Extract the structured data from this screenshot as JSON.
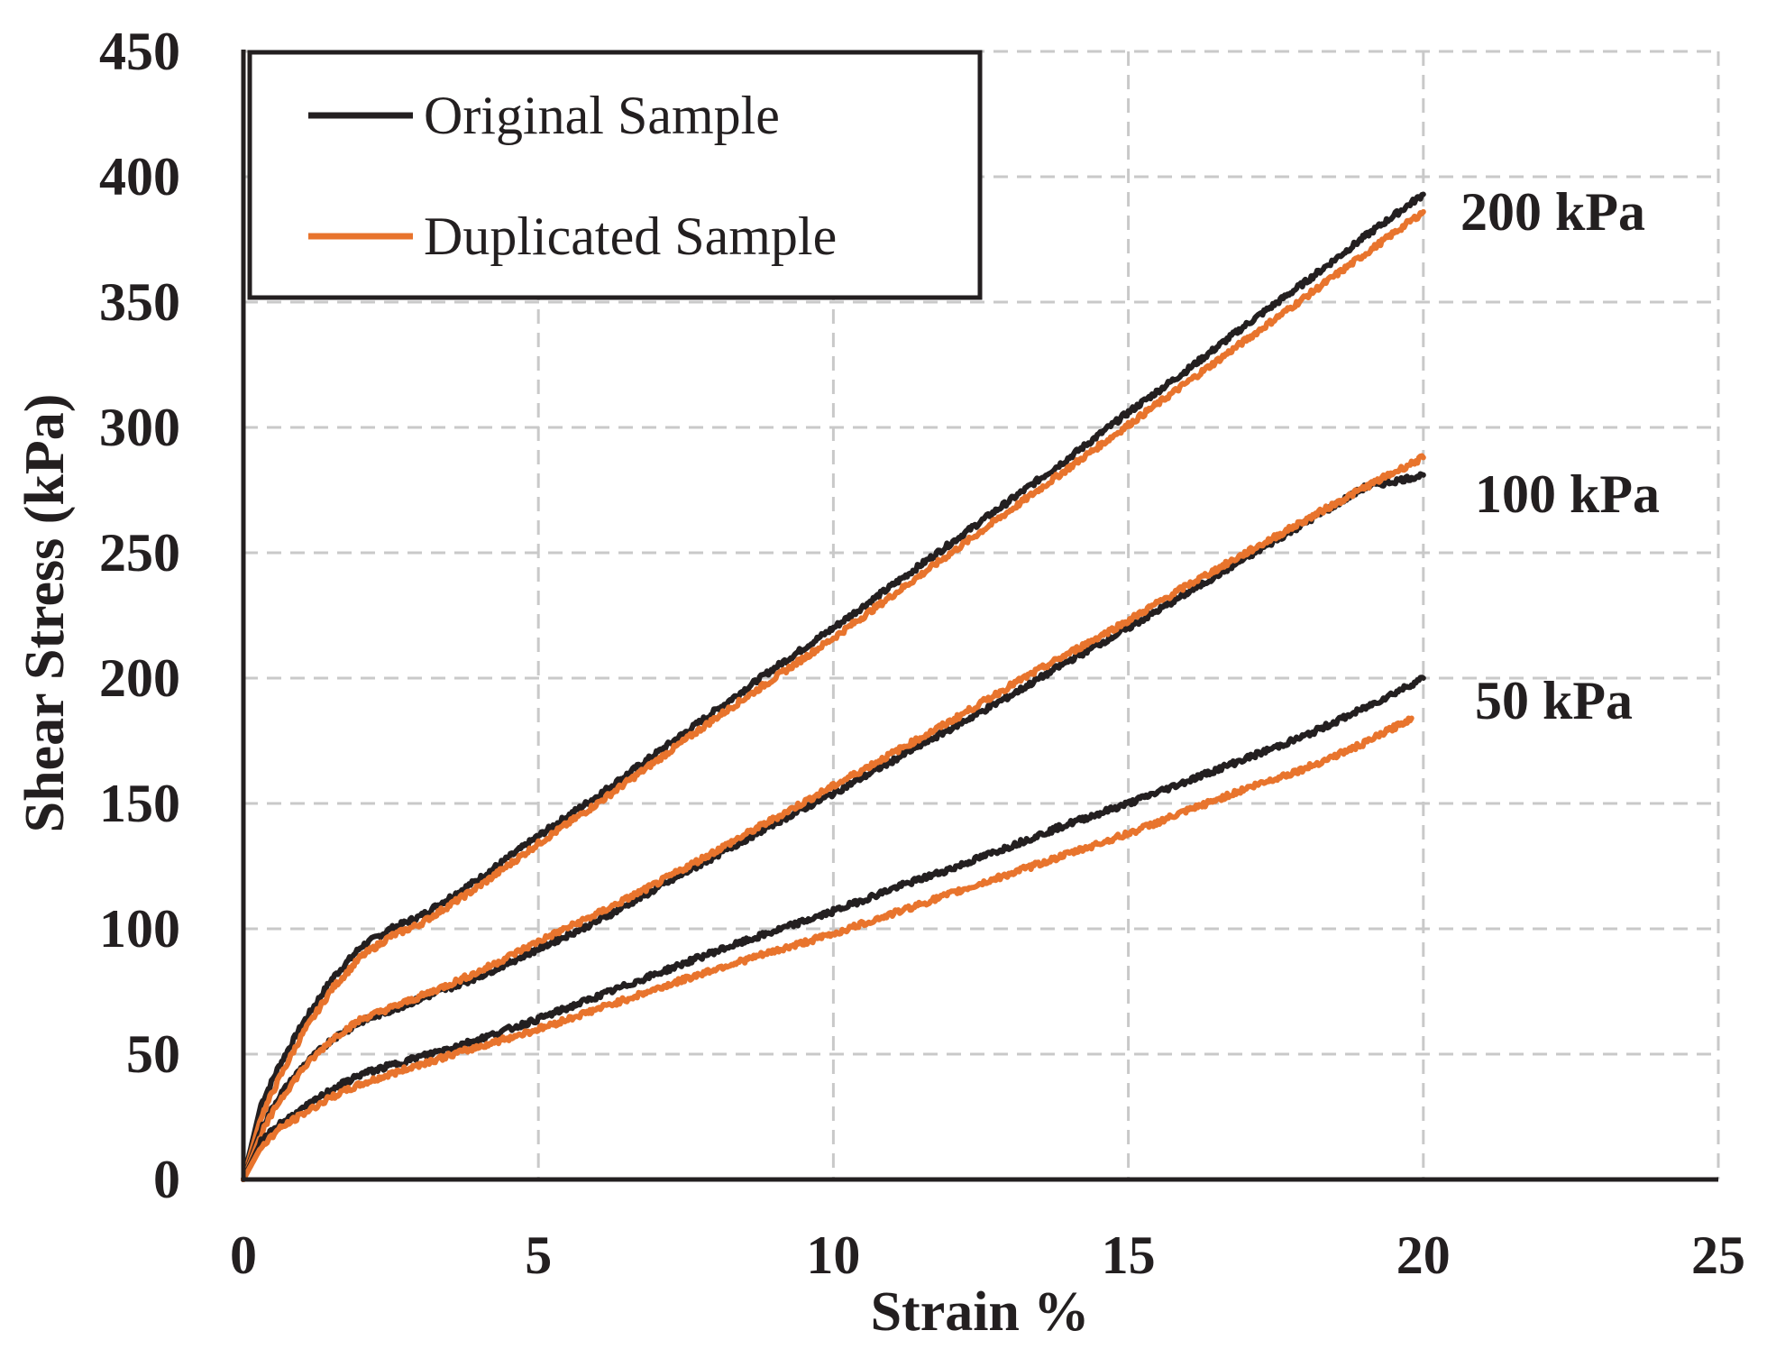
{
  "chart_data": {
    "type": "line",
    "title": "",
    "xlabel": "Strain %",
    "ylabel": "Shear Stress (kPa)",
    "xlim": [
      0,
      25
    ],
    "ylim": [
      0,
      450
    ],
    "xticks": [
      0,
      5,
      10,
      15,
      20,
      25
    ],
    "yticks": [
      0,
      50,
      100,
      150,
      200,
      250,
      300,
      350,
      400,
      450
    ],
    "x_tick_labels": [
      "0",
      "5",
      "10",
      "15",
      "20",
      "25"
    ],
    "y_tick_labels": [
      "0",
      "50",
      "100",
      "150",
      "200",
      "250",
      "300",
      "350",
      "400",
      "450"
    ],
    "grid": true,
    "legend_position": "top-left",
    "legend": [
      {
        "label": "Original Sample",
        "color": "#231f20"
      },
      {
        "label": "Duplicated Sample",
        "color": "#e8742d"
      }
    ],
    "annotations": [
      "200 kPa",
      "100 kPa",
      "50 kPa"
    ],
    "series": [
      {
        "name": "Original Sample",
        "group": "200 kPa",
        "color": "#231f20",
        "x": [
          0,
          0.3,
          0.6,
          1,
          1.5,
          2,
          2.5,
          3,
          4,
          5,
          6,
          7,
          8,
          9,
          10,
          11,
          12,
          13,
          14,
          15,
          16,
          17,
          18,
          19,
          20
        ],
        "y": [
          0,
          30,
          45,
          62,
          80,
          93,
          100,
          105,
          120,
          137,
          153,
          170,
          187,
          204,
          220,
          237,
          254,
          271,
          288,
          306,
          323,
          341,
          358,
          376,
          393
        ]
      },
      {
        "name": "Duplicated Sample",
        "group": "200 kPa",
        "color": "#e8742d",
        "x": [
          0,
          0.3,
          0.6,
          1,
          1.5,
          2,
          2.5,
          3,
          4,
          5,
          6,
          7,
          8,
          9,
          10,
          11,
          12,
          13,
          14,
          15,
          16,
          17,
          18,
          19,
          20
        ],
        "y": [
          0,
          25,
          40,
          58,
          76,
          89,
          97,
          102,
          117,
          134,
          150,
          167,
          184,
          200,
          216,
          233,
          250,
          267,
          284,
          301,
          318,
          335,
          352,
          369,
          386
        ]
      },
      {
        "name": "Original Sample",
        "group": "100 kPa",
        "color": "#231f20",
        "x": [
          0,
          0.3,
          0.6,
          1,
          1.5,
          2,
          3,
          4,
          5,
          6,
          7,
          8,
          9,
          10,
          11,
          12,
          13,
          14,
          15,
          16,
          17,
          18,
          19,
          20
        ],
        "y": [
          0,
          20,
          33,
          45,
          56,
          63,
          72,
          81,
          92,
          103,
          116,
          129,
          142,
          154,
          167,
          180,
          193,
          207,
          220,
          234,
          248,
          262,
          276,
          281
        ]
      },
      {
        "name": "Duplicated Sample",
        "group": "100 kPa",
        "color": "#e8742d",
        "x": [
          0,
          0.3,
          0.6,
          1,
          1.5,
          2,
          3,
          4,
          5,
          6,
          7,
          8,
          9,
          10,
          11,
          12,
          13,
          14,
          15,
          16,
          17,
          18,
          19,
          20
        ],
        "y": [
          0,
          18,
          31,
          44,
          56,
          64,
          73,
          83,
          95,
          106,
          118,
          131,
          144,
          157,
          170,
          183,
          197,
          210,
          223,
          237,
          250,
          263,
          276,
          288
        ]
      },
      {
        "name": "Original Sample",
        "group": "50 kPa",
        "color": "#231f20",
        "x": [
          0,
          0.3,
          0.6,
          1,
          1.5,
          2,
          3,
          4,
          5,
          6,
          7,
          8,
          9,
          10,
          11,
          12,
          13,
          14,
          15,
          16,
          17,
          18,
          19,
          20
        ],
        "y": [
          0,
          15,
          22,
          28,
          36,
          42,
          49,
          56,
          64,
          73,
          82,
          91,
          99,
          107,
          116,
          124,
          133,
          142,
          150,
          159,
          168,
          177,
          188,
          200
        ]
      },
      {
        "name": "Duplicated Sample",
        "group": "50 kPa",
        "color": "#e8742d",
        "x": [
          0,
          0.3,
          0.6,
          1,
          1.5,
          2,
          3,
          4,
          5,
          6,
          7,
          8,
          9,
          10,
          11,
          12,
          13,
          14,
          15,
          16,
          17,
          18,
          19,
          19.8
        ],
        "y": [
          0,
          13,
          20,
          26,
          33,
          38,
          46,
          53,
          60,
          68,
          76,
          84,
          91,
          98,
          106,
          114,
          122,
          130,
          138,
          147,
          156,
          164,
          174,
          184
        ]
      }
    ]
  }
}
